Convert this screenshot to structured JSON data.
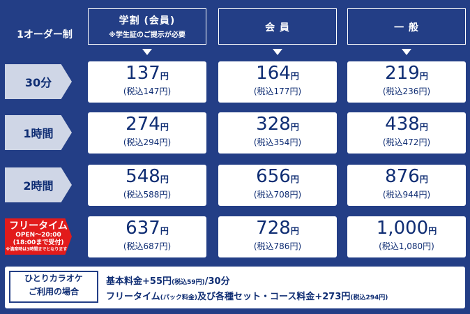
{
  "order_rule": "1オーダー制",
  "columns": [
    {
      "title": "学割 (会員)",
      "note": "※学生証のご提示が必要"
    },
    {
      "title": "会 員",
      "note": ""
    },
    {
      "title": "一 般",
      "note": ""
    }
  ],
  "rows": [
    {
      "label": "30分",
      "prices": [
        {
          "price": "137",
          "yen": "円",
          "tax": "(税込147円)"
        },
        {
          "price": "164",
          "yen": "円",
          "tax": "(税込177円)"
        },
        {
          "price": "219",
          "yen": "円",
          "tax": "(税込236円)"
        }
      ]
    },
    {
      "label": "1時間",
      "prices": [
        {
          "price": "274",
          "yen": "円",
          "tax": "(税込294円)"
        },
        {
          "price": "328",
          "yen": "円",
          "tax": "(税込354円)"
        },
        {
          "price": "438",
          "yen": "円",
          "tax": "(税込472円)"
        }
      ]
    },
    {
      "label": "2時間",
      "prices": [
        {
          "price": "548",
          "yen": "円",
          "tax": "(税込588円)"
        },
        {
          "price": "656",
          "yen": "円",
          "tax": "(税込708円)"
        },
        {
          "price": "876",
          "yen": "円",
          "tax": "(税込944円)"
        }
      ]
    },
    {
      "label": "フリータイム",
      "sub1": "OPEN〜20:00",
      "sub2": "(18:00まで受付)",
      "sub3": "※満席時は3時間までとなります。",
      "prices": [
        {
          "price": "637",
          "yen": "円",
          "tax": "(税込687円)"
        },
        {
          "price": "728",
          "yen": "円",
          "tax": "(税込786円)"
        },
        {
          "price": "1,000",
          "yen": "円",
          "tax": "(税込1,080円)"
        }
      ]
    }
  ],
  "solo": {
    "label1": "ひとりカラオケ",
    "label2": "ご利用の場合",
    "line1_main": "基本料金+55円",
    "line1_tax": "(税込59円)",
    "line1_end": "/30分",
    "line2_a": "フリータイム",
    "line2_pack": "(パック料金)",
    "line2_b": "及び各種セット・コース料金+273円",
    "line2_tax": "(税込294円)"
  }
}
